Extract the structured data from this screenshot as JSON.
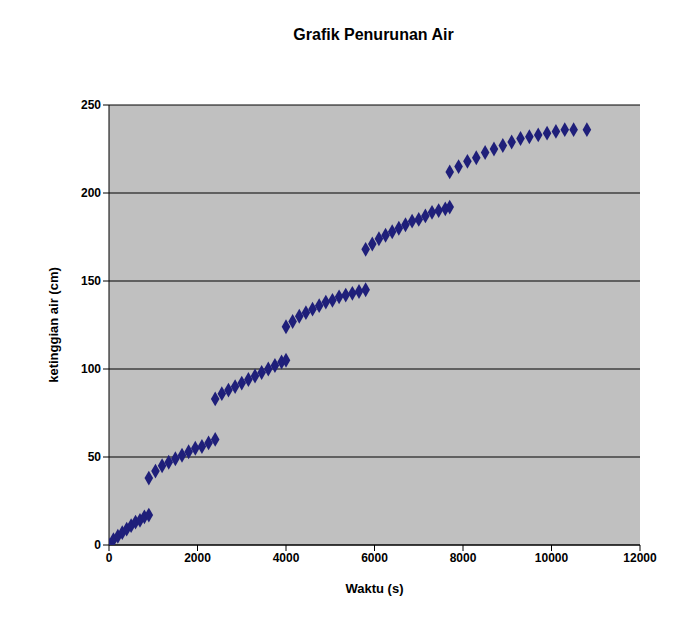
{
  "chart_data": {
    "type": "scatter",
    "title": "Grafik Penurunan Air",
    "x_label": "Waktu (s)",
    "y_label": "ketinggian air (cm)",
    "x": [
      0,
      100,
      200,
      300,
      400,
      500,
      600,
      700,
      800,
      900,
      900,
      1050,
      1200,
      1350,
      1500,
      1650,
      1800,
      1950,
      2100,
      2250,
      2400,
      2400,
      2550,
      2700,
      2850,
      3000,
      3150,
      3300,
      3450,
      3600,
      3750,
      3900,
      4000,
      4000,
      4150,
      4300,
      4450,
      4600,
      4750,
      4900,
      5050,
      5200,
      5350,
      5500,
      5650,
      5800,
      5800,
      5950,
      6100,
      6250,
      6400,
      6550,
      6700,
      6850,
      7000,
      7150,
      7300,
      7450,
      7600,
      7700,
      7700,
      7900,
      8100,
      8300,
      8500,
      8700,
      8900,
      9100,
      9300,
      9500,
      9700,
      9900,
      10100,
      10300,
      10500,
      10800
    ],
    "values": [
      0,
      3,
      5,
      7,
      9,
      11,
      13,
      14,
      16,
      17,
      38,
      42,
      45,
      47,
      49,
      51,
      53,
      55,
      56,
      58,
      60,
      83,
      86,
      88,
      90,
      92,
      94,
      96,
      98,
      100,
      102,
      104,
      105,
      124,
      127,
      130,
      132,
      134,
      136,
      138,
      139,
      141,
      142,
      143,
      144,
      145,
      168,
      171,
      174,
      176,
      178,
      180,
      182,
      184,
      185,
      187,
      189,
      190,
      191,
      192,
      212,
      215,
      218,
      220,
      223,
      225,
      227,
      229,
      231,
      232,
      233,
      234,
      235,
      236,
      236,
      236
    ],
    "color": "#1f1f7a",
    "marker": "diamond",
    "xlim": [
      0,
      12000
    ],
    "xticks": [
      0,
      2000,
      4000,
      6000,
      8000,
      10000,
      12000
    ],
    "ylim": [
      0,
      250
    ],
    "yticks": [
      0,
      50,
      100,
      150,
      200,
      250
    ],
    "grid": true
  }
}
